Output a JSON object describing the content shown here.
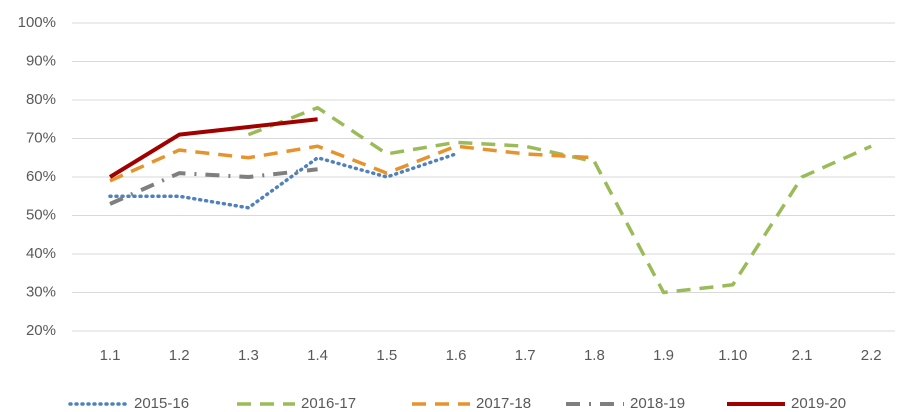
{
  "chart_data": {
    "type": "line",
    "categories": [
      "1.1",
      "1.2",
      "1.3",
      "1.4",
      "1.5",
      "1.6",
      "1.7",
      "1.8",
      "1.9",
      "1.10",
      "2.1",
      "2.2"
    ],
    "ylim": [
      20,
      100
    ],
    "yticks": [
      {
        "value": 20,
        "label": "20%"
      },
      {
        "value": 30,
        "label": "30%"
      },
      {
        "value": 40,
        "label": "40%"
      },
      {
        "value": 50,
        "label": "50%"
      },
      {
        "value": 60,
        "label": "60%"
      },
      {
        "value": 70,
        "label": "70%"
      },
      {
        "value": 80,
        "label": "80%"
      },
      {
        "value": 90,
        "label": "90%"
      },
      {
        "value": 100,
        "label": "100%"
      }
    ],
    "grid": true,
    "legend": "bottom",
    "series": [
      {
        "name": "2015-16",
        "color": "#4f81bd",
        "values": [
          55,
          55,
          52,
          65,
          60,
          66,
          null,
          null,
          null,
          null,
          null,
          null
        ]
      },
      {
        "name": "2016-17",
        "color": "#9bbb59",
        "values": [
          null,
          null,
          71,
          78,
          66,
          69,
          68,
          64,
          30,
          32,
          60,
          68
        ]
      },
      {
        "name": "2017-18",
        "color": "#e7932d",
        "values": [
          59,
          67,
          65,
          68,
          61,
          68,
          66,
          65,
          null,
          null,
          null,
          null
        ]
      },
      {
        "name": "2018-19",
        "color": "#7f7f7f",
        "values": [
          53,
          61,
          60,
          62,
          null,
          null,
          null,
          null,
          null,
          null,
          null,
          null
        ]
      },
      {
        "name": "2019-20",
        "color": "#a00000",
        "values": [
          60,
          71,
          73,
          75,
          null,
          null,
          null,
          null,
          null,
          null,
          null,
          null
        ]
      }
    ]
  }
}
